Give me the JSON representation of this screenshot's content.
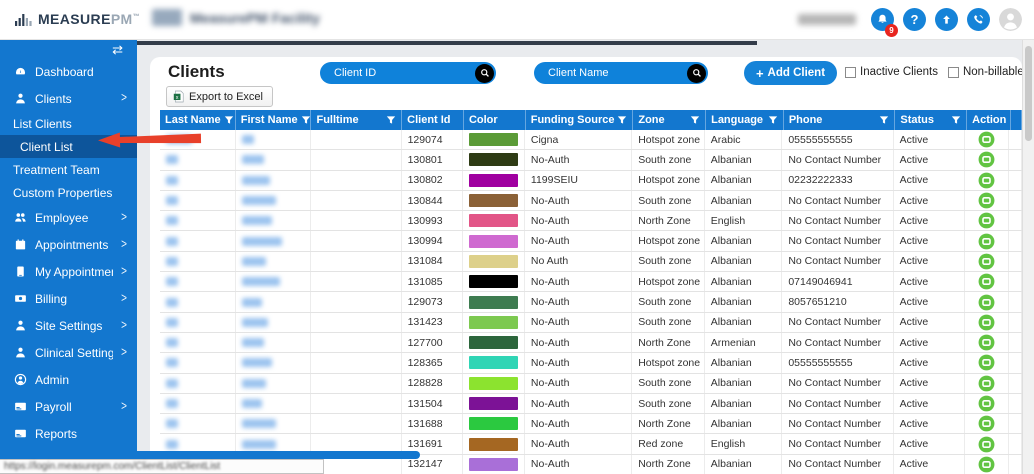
{
  "header": {
    "brand_primary": "MEASURE",
    "brand_secondary": "PM",
    "brand_tm": "™",
    "facility_name": "MeasurePM Facility",
    "notification_count": "9",
    "help_glyph": "?"
  },
  "sidebar": {
    "collapse_glyph": "⇄",
    "items": [
      {
        "label": "Dashboard",
        "icon": "gauge",
        "chevron": false,
        "type": "top",
        "active": false
      },
      {
        "label": "Clients",
        "icon": "person",
        "chevron": true,
        "type": "top",
        "active": false
      },
      {
        "label": "List Clients",
        "icon": null,
        "chevron": false,
        "type": "sub",
        "active": false
      },
      {
        "label": "Client List",
        "icon": null,
        "chevron": false,
        "type": "sub2",
        "active": true
      },
      {
        "label": "Treatment Team",
        "icon": null,
        "chevron": false,
        "type": "sub",
        "active": false
      },
      {
        "label": "Custom Properties",
        "icon": null,
        "chevron": false,
        "type": "sub",
        "active": false
      },
      {
        "label": "Employee",
        "icon": "people",
        "chevron": true,
        "type": "top",
        "active": false
      },
      {
        "label": "Appointments",
        "icon": "calendar",
        "chevron": true,
        "type": "top",
        "active": false
      },
      {
        "label": "My Appointments",
        "icon": "tablet",
        "chevron": true,
        "type": "top",
        "active": false
      },
      {
        "label": "Billing",
        "icon": "billing",
        "chevron": true,
        "type": "top",
        "active": false
      },
      {
        "label": "Site Settings",
        "icon": "person",
        "chevron": true,
        "type": "top",
        "active": false
      },
      {
        "label": "Clinical Settings",
        "icon": "person",
        "chevron": true,
        "type": "top",
        "active": false
      },
      {
        "label": "Admin",
        "icon": "admin",
        "chevron": false,
        "type": "top",
        "active": false
      },
      {
        "label": "Payroll",
        "icon": "card",
        "chevron": true,
        "type": "top",
        "active": false
      },
      {
        "label": "Reports",
        "icon": "card",
        "chevron": false,
        "type": "top",
        "active": false
      }
    ]
  },
  "toolbar": {
    "title": "Clients",
    "client_id_placeholder": "Client ID",
    "client_name_placeholder": "Client Name",
    "add_client_plus": "+",
    "add_client_label": "Add Client",
    "export_label": "Export to Excel",
    "checkbox_inactive_label": "Inactive Clients",
    "checkbox_inactive_checked": false,
    "checkbox_nonbillable_label": "Non-billable Clients",
    "checkbox_nonbillable_checked": false
  },
  "table": {
    "columns": [
      {
        "label": "Last Name",
        "filterable": true
      },
      {
        "label": "First Name",
        "filterable": true
      },
      {
        "label": "Fulltime",
        "filterable": true
      },
      {
        "label": "Client Id",
        "filterable": false
      },
      {
        "label": "Color",
        "filterable": false
      },
      {
        "label": "Funding Source",
        "filterable": true
      },
      {
        "label": "Zone",
        "filterable": true
      },
      {
        "label": "Language",
        "filterable": true
      },
      {
        "label": "Phone",
        "filterable": true
      },
      {
        "label": "Status",
        "filterable": true
      },
      {
        "label": "Action",
        "filterable": false
      }
    ],
    "rows": [
      {
        "client_id": "129074",
        "color": "#5b9b37",
        "funding": "Cigna",
        "zone": "Hotspot zone",
        "language": "Arabic",
        "phone": "05555555555",
        "status": "Active",
        "last_blur": 26,
        "first_blur": 12
      },
      {
        "client_id": "130801",
        "color": "#2e3b14",
        "funding": "No-Auth",
        "zone": "South zone",
        "language": "Albanian",
        "phone": "No Contact Number",
        "status": "Active",
        "last_blur": 12,
        "first_blur": 22
      },
      {
        "client_id": "130802",
        "color": "#a000a0",
        "funding": "1199SEIU",
        "zone": "Hotspot zone",
        "language": "Albanian",
        "phone": "02232222333",
        "status": "Active",
        "last_blur": 12,
        "first_blur": 28
      },
      {
        "client_id": "130844",
        "color": "#8b6137",
        "funding": "No-Auth",
        "zone": "South zone",
        "language": "Albanian",
        "phone": "No Contact Number",
        "status": "Active",
        "last_blur": 12,
        "first_blur": 34
      },
      {
        "client_id": "130993",
        "color": "#e25587",
        "funding": "No-Auth",
        "zone": "North Zone",
        "language": "English",
        "phone": "No Contact Number",
        "status": "Active",
        "last_blur": 12,
        "first_blur": 30
      },
      {
        "client_id": "130994",
        "color": "#cf6ad0",
        "funding": "No-Auth",
        "zone": "Hotspot zone",
        "language": "Albanian",
        "phone": "No Contact Number",
        "status": "Active",
        "last_blur": 12,
        "first_blur": 40
      },
      {
        "client_id": "131084",
        "color": "#ddd08a",
        "funding": "No Auth",
        "zone": "South zone",
        "language": "Albanian",
        "phone": "No Contact Number",
        "status": "Active",
        "last_blur": 12,
        "first_blur": 24
      },
      {
        "client_id": "131085",
        "color": "#000000",
        "funding": "No-Auth",
        "zone": "Hotspot zone",
        "language": "Albanian",
        "phone": "07149046941",
        "status": "Active",
        "last_blur": 12,
        "first_blur": 38
      },
      {
        "client_id": "129073",
        "color": "#3e7c50",
        "funding": "No-Auth",
        "zone": "South zone",
        "language": "Albanian",
        "phone": "8057651210",
        "status": "Active",
        "last_blur": 12,
        "first_blur": 20
      },
      {
        "client_id": "131423",
        "color": "#7dc950",
        "funding": "No-Auth",
        "zone": "South zone",
        "language": "Albanian",
        "phone": "No Contact Number",
        "status": "Active",
        "last_blur": 12,
        "first_blur": 26
      },
      {
        "client_id": "127700",
        "color": "#2c663c",
        "funding": "No-Auth",
        "zone": "North Zone",
        "language": "Armenian",
        "phone": "No Contact Number",
        "status": "Active",
        "last_blur": 12,
        "first_blur": 22
      },
      {
        "client_id": "128365",
        "color": "#30d5b5",
        "funding": "No-Auth",
        "zone": "Hotspot zone",
        "language": "Albanian",
        "phone": "05555555555",
        "status": "Active",
        "last_blur": 12,
        "first_blur": 30
      },
      {
        "client_id": "128828",
        "color": "#8ce32f",
        "funding": "No-Auth",
        "zone": "South zone",
        "language": "Albanian",
        "phone": "No Contact Number",
        "status": "Active",
        "last_blur": 12,
        "first_blur": 24
      },
      {
        "client_id": "131504",
        "color": "#7c1296",
        "funding": "No-Auth",
        "zone": "South zone",
        "language": "Albanian",
        "phone": "No Contact Number",
        "status": "Active",
        "last_blur": 12,
        "first_blur": 20
      },
      {
        "client_id": "131688",
        "color": "#2bc940",
        "funding": "No-Auth",
        "zone": "North Zone",
        "language": "Albanian",
        "phone": "No Contact Number",
        "status": "Active",
        "last_blur": 12,
        "first_blur": 34
      },
      {
        "client_id": "131691",
        "color": "#a56722",
        "funding": "No-Auth",
        "zone": "Red zone",
        "language": "English",
        "phone": "No Contact Number",
        "status": "Active",
        "last_blur": 12,
        "first_blur": 34
      },
      {
        "client_id": "132147",
        "color": "#a96fd8",
        "funding": "No-Auth",
        "zone": "North Zone",
        "language": "Albanian",
        "phone": "No Contact Number",
        "status": "Active",
        "last_blur": 40,
        "first_blur": 30
      }
    ]
  },
  "statusbar": {
    "url": "https://login.measurepm.com/ClientList/ClientList"
  },
  "colors": {
    "primary_blue": "#1377cf",
    "bright_blue": "#1583d8",
    "active_item_blue": "#0d559b",
    "action_green": "#62c442",
    "badge_red": "#e8251f",
    "arrow_red": "#e8402a"
  }
}
